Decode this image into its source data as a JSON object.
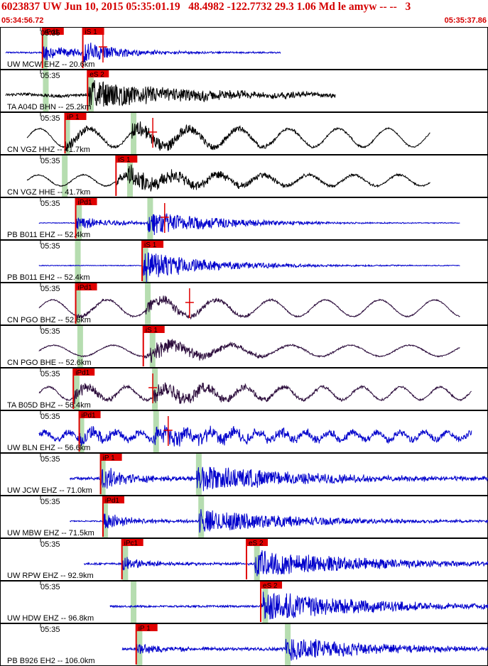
{
  "header": {
    "title": "6023837 UW Jun 10, 2015 05:35:01.19   48.4982 -122.7732 29.3 1.06 Md le amyw -- --   3",
    "start_time": "05:34:56.72",
    "end_time": "05:35:37.86"
  },
  "colors": {
    "accent": "#d40000",
    "pick_box": "#e00000",
    "window_band": "#b6ddb0",
    "frame": "#000000",
    "blue_trace": "#0000cc",
    "black_trace": "#000000",
    "purple_trace": "#2a0a3a"
  },
  "chart_data": {
    "type": "line",
    "title": "6023837 UW Jun 10, 2015 05:35:01.19   48.4982 -122.7732 29.3 1.06 Md le amyw -- --   3",
    "x_unit": "time (UTC)",
    "xlim": [
      "05:34:56.72",
      "05:35:37.86"
    ],
    "traces": [
      {
        "label": "UW MCW EHZ -- 20.6km",
        "minute_label": "05:35",
        "color": "blue",
        "picks": [
          {
            "text": "iPd1",
            "t": "05:35:00.3"
          },
          {
            "text": "iS 1",
            "t": "05:35:03.7"
          }
        ],
        "windows": [
          "05:35:00.3"
        ],
        "s_tick": "05:35:05.4",
        "start": "05:34:57.2",
        "end": "05:35:20.4",
        "noise": 0.04,
        "p_amp": 0.45,
        "s_amp": 0.6,
        "dur": 3.5,
        "swell": 0,
        "swell_per": 8
      },
      {
        "label": "TA A04D BHN -- 25.2km",
        "minute_label": "05:35",
        "color": "black",
        "picks": [
          {
            "text": "eS 2",
            "t": "05:35:04.1"
          }
        ],
        "windows": [
          "05:35:00.4",
          "05:35:04.2"
        ],
        "s_tick": "",
        "start": "05:34:57.2",
        "end": "05:35:25.0",
        "noise": 0.08,
        "p_amp": 0.1,
        "s_amp": 0.75,
        "dur": 9.0,
        "swell": 0.05,
        "swell_per": 6
      },
      {
        "label": "CN VGZ HHZ -- 41.7km",
        "minute_label": "05:35",
        "color": "black",
        "picks": [
          {
            "text": "iP 1",
            "t": "05:35:02.2"
          }
        ],
        "windows": [
          "05:35:02.2",
          "05:35:07.8"
        ],
        "s_tick": "05:35:09.6",
        "start": "05:34:59.0",
        "end": "05:35:33.0",
        "noise": 0.03,
        "p_amp": 0.3,
        "s_amp": 0.45,
        "dur": 7.0,
        "swell": 0.5,
        "swell_per": 4.2
      },
      {
        "label": "CN VGZ HHE -- 41.7km",
        "minute_label": "05:35",
        "color": "black",
        "picks": [
          {
            "text": "iS 1",
            "t": "05:35:06.5"
          }
        ],
        "windows": [
          "05:35:02.0",
          "05:35:07.5"
        ],
        "s_tick": "",
        "start": "05:34:59.0",
        "end": "05:35:33.0",
        "noise": 0.03,
        "p_amp": 0.25,
        "s_amp": 0.55,
        "dur": 8.0,
        "swell": 0.3,
        "swell_per": 3.8
      },
      {
        "label": "PB B011 EHZ -- 52.4km",
        "minute_label": "05:35",
        "color": "blue",
        "picks": [
          {
            "text": "iPd1",
            "t": "05:35:03.1"
          }
        ],
        "windows": [
          "05:35:03.2",
          "05:35:09.2"
        ],
        "s_tick": "05:35:10.6",
        "start": "05:35:00.0",
        "end": "05:35:35.5",
        "noise": 0.02,
        "p_amp": 0.4,
        "s_amp": 0.7,
        "dur": 6.0,
        "swell": 0,
        "swell_per": 8
      },
      {
        "label": "PB B011 EH2 -- 52.4km",
        "minute_label": "05:35",
        "color": "blue",
        "picks": [
          {
            "text": "iS 1",
            "t": "05:35:08.7"
          }
        ],
        "windows": [
          "05:35:03.1",
          "05:35:08.8"
        ],
        "s_tick": "",
        "start": "05:35:00.0",
        "end": "05:35:35.5",
        "noise": 0.02,
        "p_amp": 0.35,
        "s_amp": 0.7,
        "dur": 6.0,
        "swell": 0,
        "swell_per": 8
      },
      {
        "label": "CN PGO BHZ -- 52.6km",
        "minute_label": "05:35",
        "color": "purple",
        "picks": [
          {
            "text": "iPd1",
            "t": "05:35:03.1"
          }
        ],
        "windows": [
          "05:35:03.1",
          "05:35:09.0"
        ],
        "s_tick": "05:35:12.7",
        "start": "05:35:00.0",
        "end": "05:35:35.5",
        "noise": 0.03,
        "p_amp": 0.15,
        "s_amp": 0.35,
        "dur": 5.0,
        "swell": 0.45,
        "swell_per": 4.6
      },
      {
        "label": "CN PGO BHE -- 52.6km",
        "minute_label": "05:35",
        "color": "purple",
        "picks": [
          {
            "text": "iS 1",
            "t": "05:35:08.8"
          }
        ],
        "windows": [
          "05:35:03.3",
          "05:35:09.4"
        ],
        "s_tick": "",
        "start": "05:35:00.0",
        "end": "05:35:35.5",
        "noise": 0.03,
        "p_amp": 0.12,
        "s_amp": 0.5,
        "dur": 5.0,
        "swell": 0.3,
        "swell_per": 5.0
      },
      {
        "label": "TA B05D BHZ -- 56.4km",
        "minute_label": "05:35",
        "color": "purple",
        "picks": [
          {
            "text": "iPd1",
            "t": "05:35:02.9"
          }
        ],
        "windows": [
          "05:35:03.0",
          "05:35:09.6"
        ],
        "s_tick": "05:35:09.6",
        "start": "05:35:00.0",
        "end": "05:35:36.5",
        "noise": 0.04,
        "p_amp": 0.4,
        "s_amp": 0.5,
        "dur": 7.0,
        "swell": 0.35,
        "swell_per": 3.3
      },
      {
        "label": "UW BLN EHZ -- 56.6km",
        "minute_label": "05:35",
        "color": "blue",
        "picks": [
          {
            "text": "iPd1",
            "t": "05:35:03.4"
          }
        ],
        "windows": [
          "05:35:03.4",
          "05:35:09.7"
        ],
        "s_tick": "05:35:10.9",
        "start": "05:35:00.0",
        "end": "05:35:36.5",
        "noise": 0.16,
        "p_amp": 0.45,
        "s_amp": 0.45,
        "dur": 9.0,
        "swell": 0.2,
        "swell_per": 2.0
      },
      {
        "label": "UW JCW EHZ -- 71.0km",
        "minute_label": "05:35",
        "color": "blue",
        "picks": [
          {
            "text": "iP 1",
            "t": "05:35:05.2"
          }
        ],
        "windows": [
          "05:35:05.2",
          "05:35:13.3"
        ],
        "s_tick": "",
        "start": "05:35:02.6",
        "end": "05:35:38.5",
        "noise": 0.08,
        "p_amp": 0.6,
        "s_amp": 0.75,
        "dur": 9.0,
        "swell": 0,
        "swell_per": 8
      },
      {
        "label": "UW MBW EHZ -- 71.5km",
        "minute_label": "05:35",
        "color": "blue",
        "picks": [
          {
            "text": "iPd1",
            "t": "05:35:05.4"
          }
        ],
        "windows": [
          "05:35:05.4",
          "05:35:13.5"
        ],
        "s_tick": "",
        "start": "05:35:02.6",
        "end": "05:35:38.5",
        "noise": 0.03,
        "p_amp": 0.45,
        "s_amp": 0.65,
        "dur": 9.0,
        "swell": 0,
        "swell_per": 8
      },
      {
        "label": "UW RPW EHZ -- 92.9km",
        "minute_label": "05:35",
        "color": "blue",
        "picks": [
          {
            "text": "iPc1",
            "t": "05:35:07.0"
          },
          {
            "text": "eS 2",
            "t": "05:35:17.5"
          }
        ],
        "windows": [
          "05:35:07.1",
          "05:35:18.2"
        ],
        "s_tick": "",
        "start": "05:35:03.8",
        "end": "05:35:41.5",
        "noise": 0.05,
        "p_amp": 0.35,
        "s_amp": 0.8,
        "dur": 9.0,
        "swell": 0,
        "swell_per": 8
      },
      {
        "label": "UW HDW EHZ -- 96.8km",
        "minute_label": "05:35",
        "color": "blue",
        "picks": [
          {
            "text": "eS 2",
            "t": "05:35:18.7"
          }
        ],
        "windows": [
          "05:35:07.8",
          "05:35:18.9"
        ],
        "s_tick": "",
        "start": "05:35:06.0",
        "end": "05:35:42.2",
        "noise": 0.05,
        "p_amp": 0.2,
        "s_amp": 0.85,
        "dur": 9.0,
        "swell": 0,
        "swell_per": 8
      },
      {
        "label": "PB B926 EH2 -- 106.0km",
        "minute_label": "05:35",
        "color": "blue",
        "picks": [
          {
            "text": "iP 1",
            "t": "05:35:08.2"
          }
        ],
        "windows": [
          "05:35:08.3",
          "05:35:20.8"
        ],
        "s_tick": "",
        "start": "05:35:07.0",
        "end": "05:35:42.9",
        "noise": 0.06,
        "p_amp": 0.35,
        "s_amp": 0.7,
        "dur": 8.0,
        "swell": 0,
        "swell_per": 8
      }
    ]
  }
}
